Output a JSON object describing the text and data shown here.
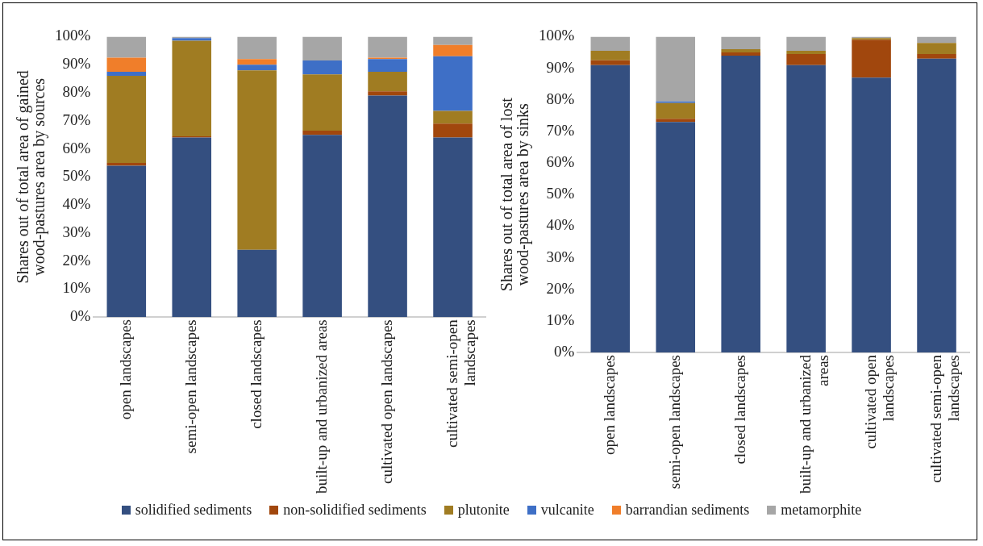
{
  "chart_data": [
    {
      "type": "bar",
      "stacked": true,
      "ylabel": "Shares out of total area of gained wood-pastures area by sources",
      "categories": [
        "open landscapes",
        "semi-open landscapes",
        "closed landscapes",
        "built-up and urbanized areas",
        "cultivated open landscapes",
        "cultivated semi-open landscapes"
      ],
      "ylim": [
        0,
        100
      ],
      "yticks": [
        {
          "value": 0,
          "label": "0%"
        },
        {
          "value": 10,
          "label": "10%"
        },
        {
          "value": 20,
          "label": "20%"
        },
        {
          "value": 30,
          "label": "30%"
        },
        {
          "value": 40,
          "label": "40%"
        },
        {
          "value": 50,
          "label": "50%"
        },
        {
          "value": 60,
          "label": "60%"
        },
        {
          "value": 70,
          "label": "70%"
        },
        {
          "value": 80,
          "label": "80%"
        },
        {
          "value": 90,
          "label": "90%"
        },
        {
          "value": 100,
          "label": "100%"
        }
      ],
      "grid": false,
      "legend": "bottom",
      "series": [
        {
          "name": "solidified sediments",
          "color": "#344f80",
          "values": [
            54,
            64,
            24,
            65,
            79,
            64
          ]
        },
        {
          "name": "non-solidified sediments",
          "color": "#a1470d",
          "values": [
            1,
            0.5,
            0,
            1.5,
            1.5,
            5
          ]
        },
        {
          "name": "plutonite",
          "color": "#a07c22",
          "values": [
            31,
            34,
            64,
            20,
            7,
            4.5
          ]
        },
        {
          "name": "vulcanite",
          "color": "#3e6fc6",
          "values": [
            1.5,
            1,
            2,
            5,
            4.5,
            19.5
          ]
        },
        {
          "name": "barrandian sediments",
          "color": "#f07e2a",
          "values": [
            5,
            0,
            2,
            0,
            0.5,
            4
          ]
        },
        {
          "name": "metamorphite",
          "color": "#a6a6a6",
          "values": [
            7.5,
            0.5,
            8,
            8.5,
            7.5,
            3
          ]
        }
      ]
    },
    {
      "type": "bar",
      "stacked": true,
      "ylabel": "Shares out of total area of lost wood-pastures area by sinks",
      "categories": [
        "open landscapes",
        "semi-open landscapes",
        "closed landscapes",
        "built-up and urbanized areas",
        "cultivated open landscapes",
        "cultivated semi-open landscapes"
      ],
      "ylim": [
        0,
        100
      ],
      "yticks": [
        {
          "value": 0,
          "label": "0%"
        },
        {
          "value": 10,
          "label": "10%"
        },
        {
          "value": 20,
          "label": "20%"
        },
        {
          "value": 30,
          "label": "30%"
        },
        {
          "value": 40,
          "label": "40%"
        },
        {
          "value": 50,
          "label": "50%"
        },
        {
          "value": 60,
          "label": "60%"
        },
        {
          "value": 70,
          "label": "70%"
        },
        {
          "value": 80,
          "label": "80%"
        },
        {
          "value": 90,
          "label": "90%"
        },
        {
          "value": 100,
          "label": "100%"
        }
      ],
      "grid": false,
      "series": [
        {
          "color": "#344f80",
          "values": [
            91,
            73,
            94,
            91,
            87,
            93
          ]
        },
        {
          "color": "#a1470d",
          "values": [
            1.5,
            1,
            1,
            3.5,
            12,
            1.5
          ]
        },
        {
          "color": "#a07c22",
          "values": [
            3,
            5,
            1,
            1,
            0.5,
            3.5
          ]
        },
        {
          "color": "#3e6fc6",
          "values": [
            0,
            0.5,
            0,
            0,
            0,
            0
          ]
        },
        {
          "color": "#f07e2a",
          "values": [
            0,
            0,
            0,
            0,
            0,
            0
          ]
        },
        {
          "color": "#a6a6a6",
          "values": [
            4.5,
            20.5,
            4,
            4.5,
            0.5,
            2
          ]
        }
      ]
    }
  ]
}
